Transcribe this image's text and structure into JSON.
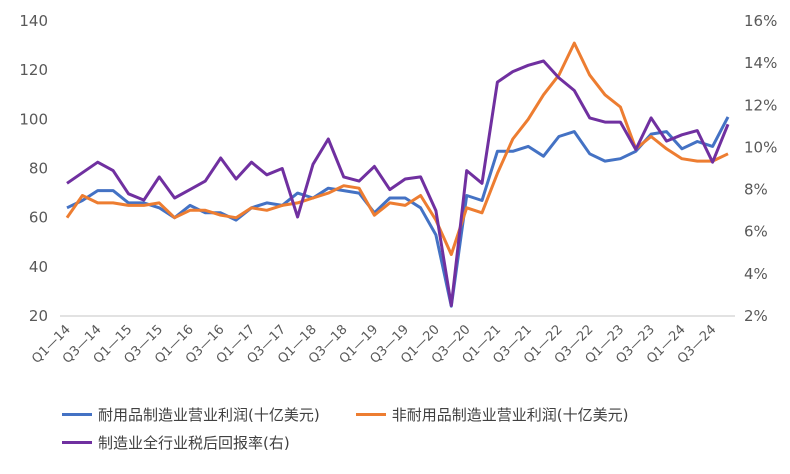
{
  "chart_data": {
    "type": "line",
    "title": "",
    "xlabel": "",
    "ylabel": "",
    "y2label": "",
    "ylim": [
      20,
      140
    ],
    "y2lim": [
      0.02,
      0.16
    ],
    "yticks": [
      "140",
      "120",
      "100",
      "80",
      "60",
      "40",
      "20"
    ],
    "y2ticks": [
      "16%",
      "14%",
      "12%",
      "10%",
      "8%",
      "6%",
      "4%",
      "2%"
    ],
    "x_tick_labels": [
      "Q1—14",
      "Q3—14",
      "Q1—15",
      "Q3—15",
      "Q1—16",
      "Q3—16",
      "Q1—17",
      "Q3—17",
      "Q1—18",
      "Q3—18",
      "Q1—19",
      "Q3—19",
      "Q1—20",
      "Q3—20",
      "Q1—21",
      "Q3—21",
      "Q1—22",
      "Q3—22",
      "Q1—23",
      "Q3—23",
      "Q1—24",
      "Q3—24"
    ],
    "x": [
      "Q1-14",
      "Q2-14",
      "Q3-14",
      "Q4-14",
      "Q1-15",
      "Q2-15",
      "Q3-15",
      "Q4-15",
      "Q1-16",
      "Q2-16",
      "Q3-16",
      "Q4-16",
      "Q1-17",
      "Q2-17",
      "Q3-17",
      "Q4-17",
      "Q1-18",
      "Q2-18",
      "Q3-18",
      "Q4-18",
      "Q1-19",
      "Q2-19",
      "Q3-19",
      "Q4-19",
      "Q1-20",
      "Q2-20",
      "Q3-20",
      "Q4-20",
      "Q1-21",
      "Q2-21",
      "Q3-21",
      "Q4-21",
      "Q1-22",
      "Q2-22",
      "Q3-22",
      "Q4-22",
      "Q1-23",
      "Q2-23",
      "Q3-23",
      "Q4-23",
      "Q1-24",
      "Q2-24",
      "Q3-24",
      "Q4-24"
    ],
    "grid": false,
    "legend_position": "bottom",
    "series": [
      {
        "name": "耐用品制造业营业利润(十亿美元)",
        "axis": "left",
        "color": "#4472C4",
        "values": [
          64,
          67,
          71,
          71,
          66,
          66,
          64,
          60,
          65,
          62,
          62,
          59,
          64,
          66,
          65,
          70,
          68,
          72,
          71,
          70,
          62,
          68,
          68,
          64,
          53,
          24,
          69,
          67,
          87,
          87,
          89,
          85,
          93,
          95,
          86,
          83,
          84,
          87,
          94,
          95,
          88,
          91,
          89,
          101
        ]
      },
      {
        "name": "非耐用品制造业营业利润(十亿美元)",
        "axis": "left",
        "color": "#ED7D31",
        "values": [
          60,
          69,
          66,
          66,
          65,
          65,
          66,
          60,
          63,
          63,
          61,
          60,
          64,
          63,
          65,
          66,
          68,
          70,
          73,
          72,
          61,
          66,
          65,
          69,
          59,
          45,
          64,
          62,
          78,
          92,
          100,
          110,
          118,
          131,
          118,
          110,
          105,
          88,
          93,
          88,
          84,
          83,
          83,
          86
        ]
      },
      {
        "name": "制造业全行业税后回报率(右)",
        "axis": "right",
        "color": "#7030A0",
        "values": [
          0.083,
          0.088,
          0.093,
          0.089,
          0.078,
          0.075,
          0.086,
          0.076,
          0.08,
          0.084,
          0.095,
          0.085,
          0.093,
          0.087,
          0.09,
          0.067,
          0.092,
          0.104,
          0.086,
          0.084,
          0.091,
          0.08,
          0.085,
          0.086,
          0.07,
          0.025,
          0.089,
          0.083,
          0.131,
          0.136,
          0.139,
          0.141,
          0.133,
          0.127,
          0.114,
          0.112,
          0.112,
          0.099,
          0.114,
          0.103,
          0.106,
          0.108,
          0.093,
          0.111
        ]
      }
    ]
  },
  "legend": {
    "items": [
      {
        "label": "耐用品制造业营业利润(十亿美元)",
        "color": "#4472C4"
      },
      {
        "label": "非耐用品制造业营业利润(十亿美元)",
        "color": "#ED7D31"
      },
      {
        "label": "制造业全行业税后回报率(右)",
        "color": "#7030A0"
      }
    ]
  }
}
